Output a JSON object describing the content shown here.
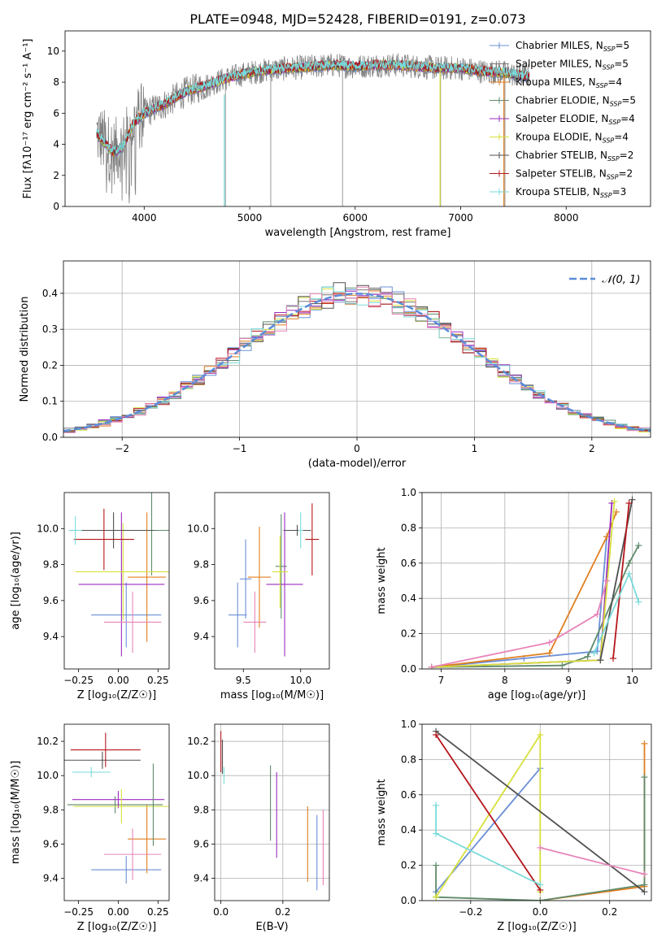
{
  "figure": {
    "title": "PLATE=0948, MJD=52428, FIBERID=0191, z=0.073"
  },
  "colors": {
    "Chabrier MILES": "#6b8fd6",
    "Salpeter MILES": "#7a7a7a",
    "Kroupa MILES": "#e07f1f",
    "Chabrier ELODIE": "#5f8a6a",
    "Salpeter ELODIE": "#9b2bbf",
    "Kroupa ELODIE": "#d6e03a",
    "Chabrier STELIB": "#505050",
    "Salpeter STELIB": "#b5161b",
    "Kroupa STELIB": "#78dada",
    "Pink": "#e884b8"
  },
  "legend_labels": {
    "m1": "Chabrier MILES, N",
    "m1n": "=5",
    "m2": "Salpeter MILES, N",
    "m2n": "=5",
    "m3": "Kroupa MILES, N",
    "m3n": "=4",
    "e1": "Chabrier ELODIE, N",
    "e1n": "=5",
    "e2": "Salpeter ELODIE, N",
    "e2n": "=4",
    "e3": "Kroupa ELODIE, N",
    "e3n": "=4",
    "s1": "Chabrier STELIB, N",
    "s1n": "=2",
    "s2": "Salpeter STELIB, N",
    "s2n": "=2",
    "s3": "Kroupa STELIB, N",
    "s3n": "=3",
    "sub": "SSP"
  },
  "chart_data": [
    {
      "type": "line",
      "title": "PLATE=0948, MJD=52428, FIBERID=0191, z=0.073",
      "xlabel": "wavelength [Angstrom, rest frame]",
      "ylabel": "Flux [fλ10⁻¹⁷ erg cm⁻² s⁻¹ A⁻¹]",
      "xlim": [
        3250,
        8800
      ],
      "ylim": [
        0,
        11.3
      ],
      "xticks": [
        4000,
        5000,
        6000,
        7000,
        8000
      ],
      "yticks": [
        0,
        2,
        4,
        6,
        8,
        10
      ],
      "spectrum_anchor_x": [
        3550,
        3700,
        3800,
        3900,
        4000,
        4200,
        4400,
        4600,
        4800,
        5000,
        5200,
        5400,
        5600,
        5800,
        6000,
        6200,
        6400,
        6600,
        6800,
        7000,
        7200,
        7400,
        7600
      ],
      "spectrum_anchor_y": [
        4.7,
        3.5,
        3.8,
        5.4,
        6.0,
        6.6,
        7.4,
        7.8,
        8.3,
        8.6,
        8.8,
        8.9,
        9.0,
        9.1,
        9.0,
        9.1,
        9.1,
        9.0,
        8.9,
        8.9,
        8.7,
        8.6,
        8.4
      ],
      "legend": "upper right"
    },
    {
      "type": "line",
      "xlabel": "(data-model)/error",
      "ylabel": "Normed distribution",
      "xlim": [
        -2.5,
        2.5
      ],
      "ylim": [
        0,
        0.49
      ],
      "xticks": [
        -2,
        -1,
        0,
        1,
        2
      ],
      "yticks": [
        0.0,
        0.1,
        0.2,
        0.3,
        0.4
      ],
      "grid": true,
      "gaussian_label": "𝒩(0, 1)",
      "gaussian_sigma": 1,
      "histogram_bin_width": 0.1,
      "legend": "upper right"
    },
    {
      "type": "scatter",
      "xlabel": "Z [log₁₀(Z/Z☉)]",
      "ylabel": "age  [log₁₀(age/yr)]",
      "xlim": [
        -0.34,
        0.32
      ],
      "ylim": [
        9.22,
        10.2
      ],
      "xticks": [
        -0.25,
        0.0,
        0.25
      ],
      "yticks": [
        9.4,
        9.6,
        9.8,
        10.0
      ],
      "series": [
        {
          "name": "Chabrier MILES",
          "x": 0.05,
          "xerr": 0.22,
          "y": 9.52,
          "yerr": 0.18
        },
        {
          "name": "Kroupa MILES",
          "x": 0.18,
          "xerr": 0.12,
          "y": 9.73,
          "yerr": 0.36
        },
        {
          "name": "Chabrier ELODIE",
          "x": 0.21,
          "xerr": 0.2,
          "y": 9.99,
          "yerr": 0.25
        },
        {
          "name": "Salpeter ELODIE",
          "x": 0.02,
          "xerr": 0.27,
          "y": 9.69,
          "yerr": 0.4
        },
        {
          "name": "Kroupa ELODIE",
          "x": 0.03,
          "xerr": 0.3,
          "y": 9.76,
          "yerr": 0.27
        },
        {
          "name": "Chabrier STELIB",
          "x": -0.03,
          "xerr": 0.26,
          "y": 9.99,
          "yerr": 0.1
        },
        {
          "name": "Salpeter STELIB",
          "x": -0.09,
          "xerr": 0.19,
          "y": 9.94,
          "yerr": 0.17
        },
        {
          "name": "Kroupa STELIB",
          "x": -0.27,
          "xerr": 0.04,
          "y": 9.99,
          "yerr": 0.08
        },
        {
          "name": "Pink",
          "x": 0.09,
          "xerr": 0.18,
          "y": 9.48,
          "yerr": 0.17
        }
      ]
    },
    {
      "type": "scatter",
      "xlabel": "mass [log₁₀(M/M☉)]",
      "ylabel": "",
      "xlim": [
        9.25,
        10.25
      ],
      "ylim": [
        9.22,
        10.2
      ],
      "xticks": [
        9.5,
        10.0
      ],
      "yticks": [
        9.4,
        9.6,
        9.8,
        10.0
      ],
      "series": [
        {
          "name": "Chabrier MILES",
          "x": 9.45,
          "xerr": 0.08,
          "y": 9.52,
          "yerr": 0.18
        },
        {
          "name": "Kroupa MILES",
          "x": 9.64,
          "xerr": 0.1,
          "y": 9.73,
          "yerr": 0.28
        },
        {
          "name": "Chabrier ELODIE",
          "x": 9.83,
          "xerr": 0.05,
          "y": 9.79,
          "yerr": 0.29
        },
        {
          "name": "Salpeter ELODIE",
          "x": 9.86,
          "xerr": 0.16,
          "y": 9.69,
          "yerr": 0.4
        },
        {
          "name": "Kroupa ELODIE",
          "x": 9.82,
          "xerr": 0.07,
          "y": 9.76,
          "yerr": 0.2
        },
        {
          "name": "Chabrier STELIB",
          "x": 9.97,
          "xerr": 0.12,
          "y": 9.99,
          "yerr": 0.03
        },
        {
          "name": "Salpeter STELIB",
          "x": 10.1,
          "xerr": 0.06,
          "y": 9.94,
          "yerr": 0.2
        },
        {
          "name": "Kroupa STELIB",
          "x": 10.0,
          "xerr": 0.02,
          "y": 9.99,
          "yerr": 0.1
        },
        {
          "name": "Chabrier MILES b",
          "x": 9.52,
          "xerr": 0.05,
          "y": 9.72,
          "yerr": 0.22
        },
        {
          "name": "Pink",
          "x": 9.6,
          "xerr": 0.1,
          "y": 9.48,
          "yerr": 0.17
        }
      ]
    },
    {
      "type": "line",
      "xlabel": "age  [log₁₀(age/yr)]",
      "ylabel": "mass weight",
      "xlim": [
        6.7,
        10.3
      ],
      "ylim": [
        0,
        1.0
      ],
      "xticks": [
        7,
        8,
        9,
        10
      ],
      "yticks": [
        0.0,
        0.2,
        0.4,
        0.6,
        0.8,
        1.0
      ],
      "grid": true,
      "series": [
        {
          "name": "Chabrier MILES",
          "x": [
            6.85,
            8.3,
            9.45,
            9.6
          ],
          "y": [
            0.01,
            0.06,
            0.1,
            0.75
          ]
        },
        {
          "name": "Kroupa MILES",
          "x": [
            6.85,
            8.7,
            9.6,
            9.75
          ],
          "y": [
            0.01,
            0.09,
            0.75,
            0.89
          ]
        },
        {
          "name": "Chabrier ELODIE",
          "x": [
            6.85,
            8.9,
            9.3,
            9.95,
            10.1
          ],
          "y": [
            0.01,
            0.02,
            0.07,
            0.6,
            0.7
          ]
        },
        {
          "name": "Salpeter ELODIE",
          "x": [
            6.85,
            9.5,
            9.68
          ],
          "y": [
            0.01,
            0.05,
            0.94
          ]
        },
        {
          "name": "Kroupa ELODIE",
          "x": [
            6.85,
            9.5,
            9.72
          ],
          "y": [
            0.01,
            0.05,
            0.95
          ]
        },
        {
          "name": "Chabrier STELIB",
          "x": [
            9.5,
            10.0
          ],
          "y": [
            0.05,
            0.96
          ]
        },
        {
          "name": "Salpeter STELIB",
          "x": [
            9.7,
            9.95
          ],
          "y": [
            0.06,
            0.94
          ]
        },
        {
          "name": "Kroupa STELIB",
          "x": [
            9.4,
            9.95,
            10.1
          ],
          "y": [
            0.09,
            0.54,
            0.38
          ]
        },
        {
          "name": "Pink",
          "x": [
            6.85,
            8.7,
            9.45,
            9.6
          ],
          "y": [
            0.01,
            0.15,
            0.31,
            0.5
          ]
        }
      ]
    },
    {
      "type": "scatter",
      "xlabel": "Z [log₁₀(Z/Z☉)]",
      "ylabel": "mass [log₁₀(M/M☉)]",
      "xlim": [
        -0.34,
        0.32
      ],
      "ylim": [
        9.27,
        10.3
      ],
      "xticks": [
        -0.25,
        0.0,
        0.25
      ],
      "yticks": [
        9.4,
        9.6,
        9.8,
        10.0,
        10.2
      ],
      "series": [
        {
          "name": "Chabrier MILES",
          "x": 0.05,
          "xerr": 0.22,
          "y": 9.45,
          "yerr": 0.08
        },
        {
          "name": "Kroupa MILES",
          "x": 0.18,
          "xerr": 0.12,
          "y": 9.63,
          "yerr": 0.2
        },
        {
          "name": "Chabrier ELODIE",
          "x": -0.02,
          "xerr": 0.3,
          "y": 9.83,
          "yerr": 0.05
        },
        {
          "name": "Salpeter ELODIE",
          "x": 0.0,
          "xerr": 0.29,
          "y": 9.86,
          "yerr": 0.05
        },
        {
          "name": "Kroupa ELODIE",
          "x": 0.02,
          "xerr": 0.3,
          "y": 9.82,
          "yerr": 0.1
        },
        {
          "name": "Chabrier STELIB",
          "x": -0.1,
          "xerr": 0.24,
          "y": 10.09,
          "yerr": 0.05
        },
        {
          "name": "Salpeter STELIB",
          "x": -0.08,
          "xerr": 0.22,
          "y": 10.15,
          "yerr": 0.1
        },
        {
          "name": "Kroupa STELIB",
          "x": -0.17,
          "xerr": 0.12,
          "y": 10.02,
          "yerr": 0.03
        },
        {
          "name": "Pink",
          "x": 0.09,
          "xerr": 0.18,
          "y": 9.54,
          "yerr": 0.15
        },
        {
          "name": "Chabrier ELODIE b",
          "x": 0.22,
          "xerr": 0.01,
          "y": 9.83,
          "yerr": 0.24
        }
      ]
    },
    {
      "type": "scatter",
      "xlabel": "E(B-V)",
      "ylabel": "",
      "xlim": [
        -0.02,
        0.35
      ],
      "ylim": [
        9.27,
        10.3
      ],
      "xticks": [
        0.0,
        0.2
      ],
      "yticks": [
        9.4,
        9.6,
        9.8,
        10.0,
        10.2
      ],
      "grid": true,
      "series": [
        {
          "name": "Chabrier MILES",
          "x": 0.31,
          "y": 9.55,
          "yerr": 0.22
        },
        {
          "name": "Kroupa MILES",
          "x": 0.28,
          "y": 9.6,
          "yerr": 0.22
        },
        {
          "name": "Chabrier ELODIE",
          "x": 0.16,
          "y": 9.84,
          "yerr": 0.22
        },
        {
          "name": "Salpeter ELODIE",
          "x": 0.18,
          "y": 9.77,
          "yerr": 0.25
        },
        {
          "name": "Chabrier STELIB",
          "x": 0.005,
          "y": 10.11,
          "yerr": 0.1
        },
        {
          "name": "Salpeter STELIB",
          "x": 0.0,
          "y": 10.14,
          "yerr": 0.12
        },
        {
          "name": "Kroupa STELIB",
          "x": 0.01,
          "y": 10.0,
          "yerr": 0.05
        },
        {
          "name": "Pink",
          "x": 0.33,
          "y": 9.58,
          "yerr": 0.22
        }
      ]
    },
    {
      "type": "line",
      "xlabel": "Z [log₁₀(Z/Z☉)]",
      "ylabel": "mass weight",
      "xlim": [
        -0.34,
        0.32
      ],
      "ylim": [
        0,
        1.0
      ],
      "xticks": [
        -0.2,
        0.0,
        0.2
      ],
      "yticks": [
        0.0,
        0.2,
        0.4,
        0.6,
        0.8,
        1.0
      ],
      "grid": true,
      "series": [
        {
          "name": "Chabrier MILES",
          "x": [
            -0.3,
            0.0
          ],
          "y": [
            0.05,
            0.75
          ]
        },
        {
          "name": "Kroupa MILES",
          "x": [
            0.0,
            0.3,
            0.3
          ],
          "y": [
            0.0,
            0.08,
            0.89
          ]
        },
        {
          "name": "Chabrier ELODIE",
          "x": [
            -0.3,
            -0.3,
            0.0,
            0.3,
            0.3
          ],
          "y": [
            0.2,
            0.02,
            0.0,
            0.09,
            0.7
          ]
        },
        {
          "name": "Kroupa ELODIE",
          "x": [
            -0.3,
            0.0,
            0.0
          ],
          "y": [
            0.02,
            0.94,
            0.05
          ]
        },
        {
          "name": "Chabrier STELIB",
          "x": [
            -0.3,
            0.3
          ],
          "y": [
            0.96,
            0.05
          ]
        },
        {
          "name": "Salpeter STELIB",
          "x": [
            -0.3,
            0.0
          ],
          "y": [
            0.94,
            0.06
          ]
        },
        {
          "name": "Kroupa STELIB",
          "x": [
            -0.3,
            -0.3,
            0.0
          ],
          "y": [
            0.54,
            0.38,
            0.09
          ]
        },
        {
          "name": "Pink",
          "x": [
            0.0,
            0.3
          ],
          "y": [
            0.3,
            0.15
          ]
        }
      ]
    }
  ]
}
